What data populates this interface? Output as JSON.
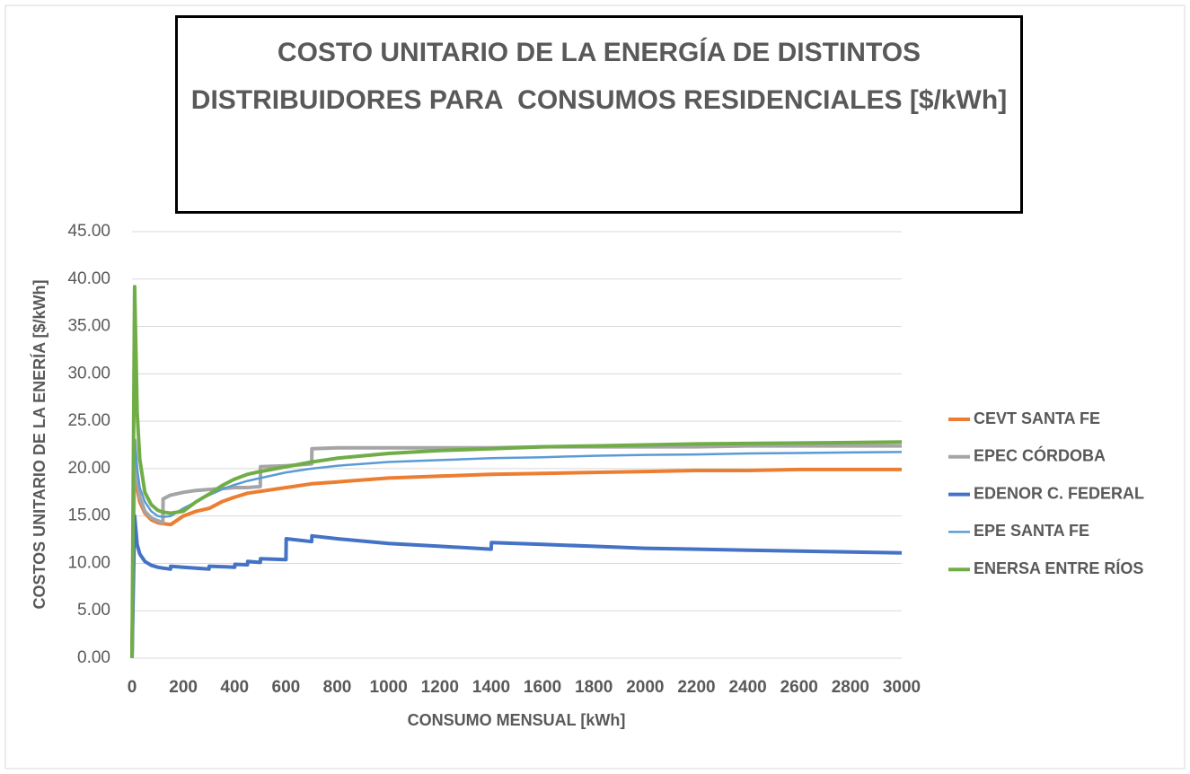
{
  "chart_data": {
    "type": "line",
    "title": "COSTO UNITARIO DE LA ENERGÍA DE DISTINTOS DISTRIBUIDORES PARA  CONSUMOS RESIDENCIALES [$/kWh]",
    "xlabel": "CONSUMO MENSUAL  [kWh]",
    "ylabel": "COSTOS UNITARIO DE LA ENERÍA [$/kWh]",
    "x": [
      0,
      10,
      20,
      30,
      50,
      75,
      100,
      120,
      121,
      150,
      151,
      200,
      250,
      300,
      301,
      350,
      400,
      401,
      450,
      451,
      500,
      501,
      600,
      601,
      700,
      701,
      800,
      1000,
      1200,
      1400,
      1401,
      1600,
      1800,
      2000,
      2200,
      2400,
      2600,
      2800,
      3000
    ],
    "xlim": [
      0,
      3000
    ],
    "xticks": [
      0,
      200,
      400,
      600,
      800,
      1000,
      1200,
      1400,
      1600,
      1800,
      2000,
      2200,
      2400,
      2600,
      2800,
      3000
    ],
    "ylim": [
      0,
      45
    ],
    "yticks": [
      {
        "value": 0,
        "label": "0.00"
      },
      {
        "value": 5,
        "label": "5.00"
      },
      {
        "value": 10,
        "label": "10.00"
      },
      {
        "value": 15,
        "label": "15.00"
      },
      {
        "value": 20,
        "label": "20.00"
      },
      {
        "value": 25,
        "label": "25.00"
      },
      {
        "value": 30,
        "label": "30.00"
      },
      {
        "value": 35,
        "label": "35.00"
      },
      {
        "value": 40,
        "label": "40.00"
      },
      {
        "value": 45,
        "label": "45.00"
      }
    ],
    "grid": true,
    "legend": "right",
    "series": [
      {
        "name": "CEVT SANTA FE",
        "color": "#ed7d31",
        "line_width": 4,
        "values": [
          0,
          22,
          18,
          16.5,
          15.3,
          14.6,
          14.3,
          14.2,
          14.2,
          14.1,
          14.1,
          15,
          15.5,
          15.8,
          15.8,
          16.5,
          17,
          17,
          17.4,
          17.4,
          17.6,
          17.6,
          18,
          18,
          18.4,
          18.4,
          18.6,
          19,
          19.2,
          19.4,
          19.4,
          19.5,
          19.6,
          19.7,
          19.8,
          19.8,
          19.9,
          19.9,
          19.9
        ]
      },
      {
        "name": "EPEC CÓRDOBA",
        "color": "#a5a5a5",
        "line_width": 4,
        "values": [
          0,
          23,
          19,
          17,
          15.5,
          14.8,
          14.5,
          14.3,
          16.8,
          17.2,
          17.2,
          17.5,
          17.7,
          17.8,
          17.8,
          17.9,
          18,
          18,
          18,
          18,
          18.1,
          20.2,
          20.3,
          20.3,
          20.5,
          22.1,
          22.2,
          22.2,
          22.2,
          22.2,
          22.2,
          22.3,
          22.3,
          22.3,
          22.3,
          22.4,
          22.4,
          22.4,
          22.4
        ]
      },
      {
        "name": "EDENOR C. FEDERAL",
        "color": "#4472c4",
        "line_width": 4,
        "values": [
          0,
          15,
          12,
          11,
          10.2,
          9.8,
          9.6,
          9.5,
          9.5,
          9.4,
          9.7,
          9.6,
          9.5,
          9.4,
          9.7,
          9.65,
          9.6,
          9.9,
          9.85,
          10.2,
          10.1,
          10.5,
          10.4,
          12.6,
          12.3,
          12.9,
          12.6,
          12.1,
          11.8,
          11.5,
          12.2,
          12,
          11.8,
          11.6,
          11.5,
          11.4,
          11.3,
          11.2,
          11.1
        ]
      },
      {
        "name": "EPE SANTA FE",
        "color": "#5b9bd5",
        "line_width": 2.5,
        "values": [
          0,
          23,
          20,
          18,
          16.5,
          15.5,
          15,
          14.9,
          14.9,
          15,
          15,
          15.8,
          16.5,
          17.2,
          17.2,
          17.8,
          18.3,
          18.3,
          18.7,
          18.7,
          19,
          19,
          19.6,
          19.6,
          20,
          20,
          20.3,
          20.7,
          20.9,
          21.1,
          21.1,
          21.2,
          21.35,
          21.45,
          21.5,
          21.6,
          21.65,
          21.7,
          21.75
        ]
      },
      {
        "name": "ENERSA ENTRE RÍOS",
        "color": "#70ad47",
        "line_width": 4,
        "values": [
          0,
          39.2,
          26,
          21,
          17.5,
          16.2,
          15.6,
          15.4,
          15.4,
          15.3,
          15.3,
          15.5,
          16.5,
          17.3,
          17.3,
          18.2,
          18.9,
          18.9,
          19.4,
          19.4,
          19.7,
          19.7,
          20.2,
          20.2,
          20.7,
          20.7,
          21.1,
          21.6,
          21.9,
          22.1,
          22.1,
          22.3,
          22.4,
          22.5,
          22.6,
          22.65,
          22.7,
          22.75,
          22.8
        ]
      }
    ]
  }
}
